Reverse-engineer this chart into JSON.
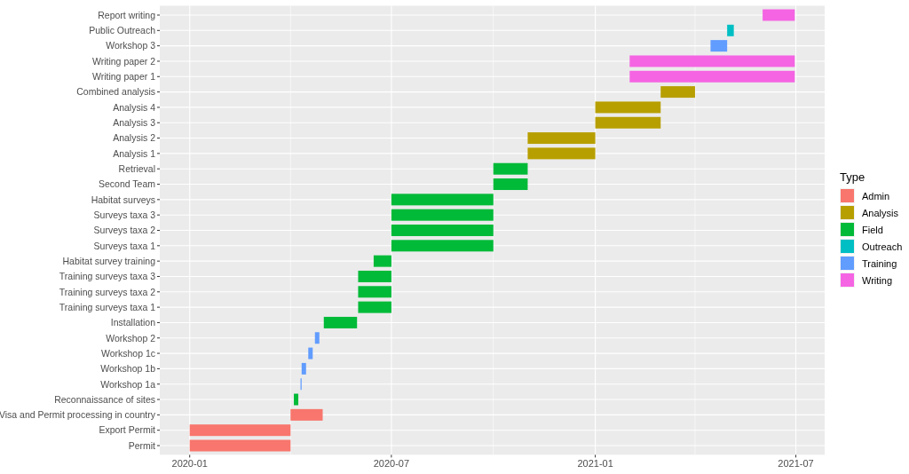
{
  "chart_data": {
    "type": "bar",
    "orientation": "horizontal",
    "legend_title": "Type",
    "legend": "right",
    "grid": true,
    "categories": [
      "Report writing",
      "Public Outreach",
      "Workshop 3",
      "Writing paper 2",
      "Writing paper 1",
      "Combined analysis",
      "Analysis 4",
      "Analysis 3",
      "Analysis 2",
      "Analysis 1",
      "Retrieval",
      "Second Team",
      "Habitat surveys",
      "Surveys taxa 3",
      "Surveys taxa 2",
      "Surveys taxa 1",
      "Habitat survey training",
      "Training surveys taxa 3",
      "Training surveys taxa 2",
      "Training surveys taxa 1",
      "Installation",
      "Workshop 2",
      "Workshop 1c",
      "Workshop 1b",
      "Workshop 1a",
      "Reconnaissance of sites",
      "Visa and Permit processing in country",
      "Export Permit",
      "Permit"
    ],
    "xlim": [
      "2019-12-05",
      "2021-07-27"
    ],
    "xticks": [
      {
        "value": "2020-01-01",
        "label": "2020-01"
      },
      {
        "value": "2020-04-01",
        "label": null
      },
      {
        "value": "2020-07-01",
        "label": "2020-07"
      },
      {
        "value": "2020-10-01",
        "label": null
      },
      {
        "value": "2021-01-01",
        "label": "2021-01"
      },
      {
        "value": "2021-04-01",
        "label": null
      },
      {
        "value": "2021-07-01",
        "label": "2021-07"
      }
    ],
    "series": [
      {
        "name": "Admin",
        "color": "#f8766d",
        "values": [
          null,
          null,
          null,
          null,
          null,
          null,
          null,
          null,
          null,
          null,
          null,
          null,
          null,
          null,
          null,
          null,
          null,
          null,
          null,
          null,
          null,
          null,
          null,
          null,
          null,
          null,
          29,
          91,
          91
        ],
        "base": [
          null,
          null,
          null,
          null,
          null,
          null,
          null,
          null,
          null,
          null,
          null,
          null,
          null,
          null,
          null,
          null,
          null,
          null,
          null,
          null,
          null,
          null,
          null,
          null,
          null,
          null,
          18353,
          18262,
          18262
        ]
      },
      {
        "name": "Analysis",
        "color": "#b79f00",
        "values": [
          null,
          null,
          null,
          null,
          null,
          31,
          59,
          59,
          61,
          61,
          null,
          null,
          null,
          null,
          null,
          null,
          null,
          null,
          null,
          null,
          null,
          null,
          null,
          null,
          null,
          null,
          null,
          null,
          null
        ],
        "base": [
          null,
          null,
          null,
          null,
          null,
          18687,
          18628,
          18628,
          18567,
          18567,
          null,
          null,
          null,
          null,
          null,
          null,
          null,
          null,
          null,
          null,
          null,
          null,
          null,
          null,
          null,
          null,
          null,
          null,
          null
        ]
      },
      {
        "name": "Field",
        "color": "#00ba38",
        "values": [
          null,
          null,
          null,
          null,
          null,
          null,
          null,
          null,
          null,
          null,
          31,
          31,
          92,
          92,
          92,
          92,
          16,
          30,
          30,
          30,
          30,
          null,
          null,
          null,
          null,
          4,
          null,
          null,
          null
        ],
        "base": [
          null,
          null,
          null,
          null,
          null,
          null,
          null,
          null,
          null,
          null,
          18536,
          18536,
          18444,
          18444,
          18444,
          18444,
          18428,
          18414,
          18414,
          18414,
          18383,
          null,
          null,
          null,
          null,
          18356,
          null,
          null,
          null
        ]
      },
      {
        "name": "Outreach",
        "color": "#00bfc4",
        "values": [
          null,
          6,
          null,
          null,
          null,
          null,
          null,
          null,
          null,
          null,
          null,
          null,
          null,
          null,
          null,
          null,
          null,
          null,
          null,
          null,
          null,
          null,
          null,
          null,
          null,
          null,
          null,
          null,
          null
        ],
        "base": [
          null,
          18747,
          null,
          null,
          null,
          null,
          null,
          null,
          null,
          null,
          null,
          null,
          null,
          null,
          null,
          null,
          null,
          null,
          null,
          null,
          null,
          null,
          null,
          null,
          null,
          null,
          null,
          null,
          null
        ]
      },
      {
        "name": "Training",
        "color": "#619cff",
        "values": [
          null,
          null,
          15,
          null,
          null,
          null,
          null,
          null,
          null,
          null,
          null,
          null,
          null,
          null,
          null,
          null,
          null,
          null,
          null,
          null,
          null,
          4,
          4,
          4,
          1,
          null,
          null,
          null,
          null
        ],
        "base": [
          null,
          null,
          18732,
          null,
          null,
          null,
          null,
          null,
          null,
          null,
          null,
          null,
          null,
          null,
          null,
          null,
          null,
          null,
          null,
          null,
          null,
          18375,
          18369,
          18363,
          18362,
          null,
          null,
          null,
          null
        ]
      },
      {
        "name": "Writing",
        "color": "#f564e3",
        "values": [
          29,
          null,
          null,
          149,
          149,
          null,
          null,
          null,
          null,
          null,
          null,
          null,
          null,
          null,
          null,
          null,
          null,
          null,
          null,
          null,
          null,
          null,
          null,
          null,
          null,
          null,
          null,
          null,
          null
        ],
        "base": [
          18779,
          null,
          null,
          18659,
          18659,
          null,
          null,
          null,
          null,
          null,
          null,
          null,
          null,
          null,
          null,
          null,
          null,
          null,
          null,
          null,
          null,
          null,
          null,
          null,
          null,
          null,
          null,
          null,
          null
        ]
      }
    ]
  }
}
